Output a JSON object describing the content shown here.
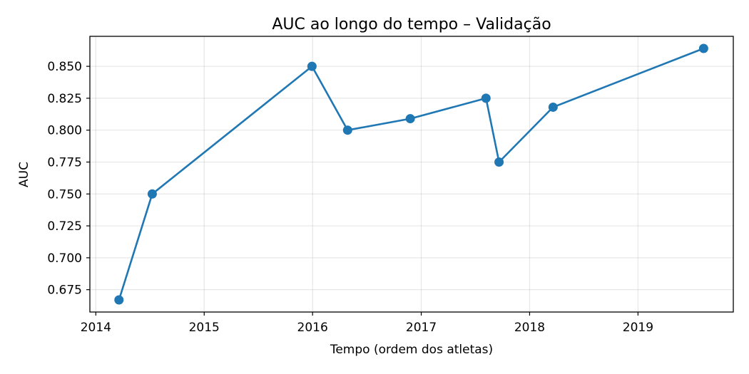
{
  "chart_data": {
    "type": "line",
    "title": "AUC ao longo do tempo – Validação",
    "xlabel": "Tempo (ordem dos atletas)",
    "ylabel": "AUC",
    "x_type": "date",
    "xlim": [
      "2013-12-12",
      "2019-11-18"
    ],
    "ylim": [
      0.6575,
      0.8735
    ],
    "xticks": [
      "2014",
      "2015",
      "2016",
      "2017",
      "2018",
      "2019"
    ],
    "yticks": [
      "0.675",
      "0.700",
      "0.725",
      "0.750",
      "0.775",
      "0.800",
      "0.825",
      "0.850"
    ],
    "grid": true,
    "color": "#1f77b4",
    "series": [
      {
        "x": [
          "2014-03-20",
          "2014-07-10",
          "2015-12-30",
          "2016-04-28",
          "2016-11-25",
          "2017-08-07",
          "2017-09-20",
          "2018-03-21",
          "2019-08-10"
        ],
        "values": [
          0.667,
          0.75,
          0.85,
          0.8,
          0.809,
          0.825,
          0.775,
          0.818,
          0.864
        ]
      }
    ]
  }
}
